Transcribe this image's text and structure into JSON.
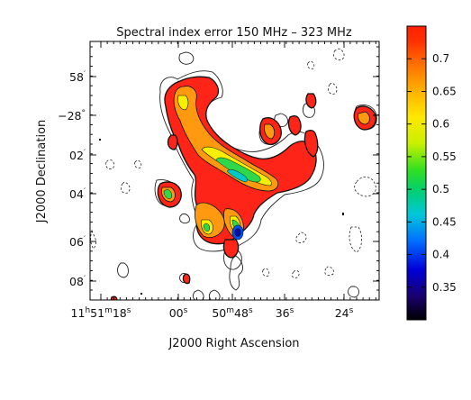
{
  "chart_data": {
    "type": "heatmap",
    "title": "Spectral index error 150 MHz – 323 MHz",
    "xlabel": "J2000 Right Ascension",
    "ylabel": "J2000 Declination",
    "x_tick_labels": [
      {
        "h": "11",
        "hs": "h",
        "m": "51",
        "ms": "m",
        "s": "18",
        "ss": "s"
      },
      {
        "s": "00",
        "ss": "s"
      },
      {
        "m": "50",
        "ms": "m",
        "s": "48",
        "ss": "s"
      },
      {
        "s": "36",
        "ss": "s"
      },
      {
        "s": "24",
        "ss": "s"
      }
    ],
    "y_tick_labels": [
      {
        "v": "58",
        "u": "′"
      },
      {
        "v": "−28",
        "u": "°"
      },
      {
        "v": "02",
        "u": "′"
      },
      {
        "v": "04",
        "u": "′"
      },
      {
        "v": "06",
        "u": "′"
      },
      {
        "v": "08",
        "u": "′"
      }
    ],
    "colorbar": {
      "range": [
        0.3,
        0.75
      ],
      "ticks": [
        0.35,
        0.4,
        0.45,
        0.5,
        0.55,
        0.6,
        0.65,
        0.7
      ],
      "tick_labels": [
        "0.35",
        "0.4",
        "0.45",
        "0.5",
        "0.55",
        "0.6",
        "0.65",
        "0.7"
      ],
      "colormap": [
        "#000000",
        "#1a006e",
        "#0000d8",
        "#0070ff",
        "#00c8d8",
        "#00d070",
        "#30e020",
        "#c8f000",
        "#ffe800",
        "#ffb000",
        "#ff7000",
        "#ff3000",
        "#ff2000"
      ]
    }
  }
}
